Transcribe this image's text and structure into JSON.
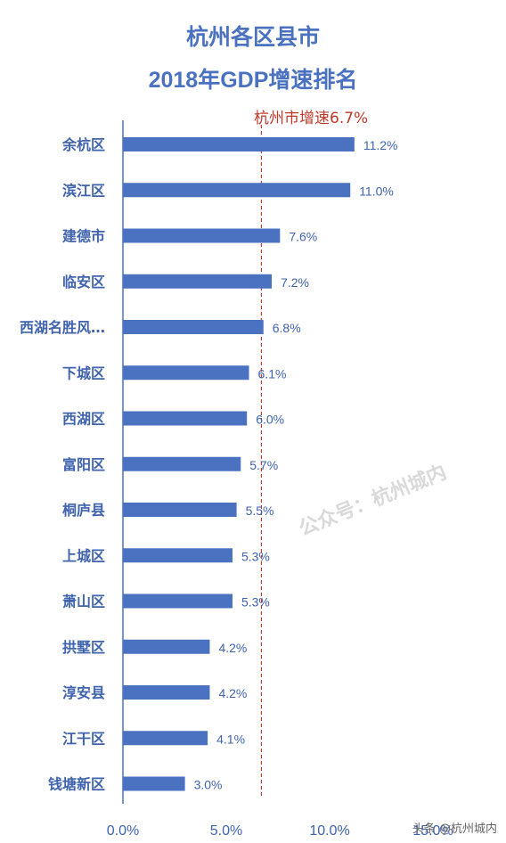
{
  "chart_data": {
    "type": "bar",
    "orientation": "horizontal",
    "title": "杭州各区县市",
    "subtitle": "2018年GDP增速排名",
    "categories": [
      "余杭区",
      "滨江区",
      "建德市",
      "临安区",
      "西湖名胜风…",
      "下城区",
      "西湖区",
      "富阳区",
      "桐庐县",
      "上城区",
      "萧山区",
      "拱墅区",
      "淳安县",
      "江干区",
      "钱塘新区"
    ],
    "values": [
      11.2,
      11.0,
      7.6,
      7.2,
      6.8,
      6.1,
      6.0,
      5.7,
      5.5,
      5.3,
      5.3,
      4.2,
      4.2,
      4.1,
      3.0
    ],
    "value_labels": [
      "11.2%",
      "11.0%",
      "7.6%",
      "7.2%",
      "6.8%",
      "6.1%",
      "6.0%",
      "5.7%",
      "5.5%",
      "5.3%",
      "5.3%",
      "4.2%",
      "4.2%",
      "4.1%",
      "3.0%"
    ],
    "x_ticks": [
      0,
      5,
      10,
      15
    ],
    "x_tick_labels": [
      "0.0%",
      "5.0%",
      "10.0%",
      "15.0%"
    ],
    "xlim": [
      0,
      15
    ],
    "reference_line": {
      "value": 6.7,
      "label": "杭州市增速6.7%",
      "color": "#c0392b"
    },
    "bar_color": "#4a72c0",
    "grid": false
  },
  "watermark": "公众号：杭州城内",
  "credit": "头条 @杭州城内"
}
